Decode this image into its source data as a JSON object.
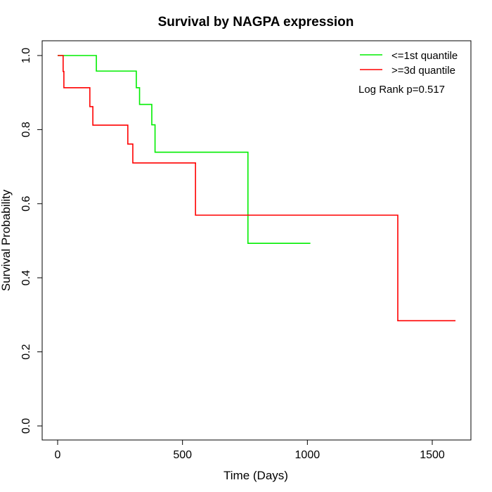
{
  "chart_data": {
    "type": "line",
    "title": "Survival by NAGPA expression",
    "xlabel": "Time (Days)",
    "ylabel": "Survival Probability",
    "xlim": [
      0,
      1650
    ],
    "ylim": [
      0,
      1.0
    ],
    "xticks": [
      0,
      500,
      1000,
      1500
    ],
    "yticks": [
      0.0,
      0.2,
      0.4,
      0.6,
      0.8,
      1.0
    ],
    "grid": false,
    "legend_position": "top-right",
    "annotation": "Log Rank p=0.517",
    "series": [
      {
        "name": "<=1st quantile",
        "color": "#00ee00",
        "step": true,
        "x": [
          0,
          155,
          315,
          328,
          377,
          390,
          762,
          1012
        ],
        "y": [
          1.0,
          0.958,
          0.913,
          0.868,
          0.813,
          0.739,
          0.493,
          0.493
        ]
      },
      {
        "name": ">=3d quantile",
        "color": "#ff0000",
        "step": true,
        "x": [
          0,
          22,
          25,
          129,
          141,
          281,
          301,
          552,
          1362,
          1593
        ],
        "y": [
          1.0,
          0.957,
          0.913,
          0.862,
          0.812,
          0.761,
          0.71,
          0.569,
          0.284,
          0.284
        ]
      }
    ]
  }
}
